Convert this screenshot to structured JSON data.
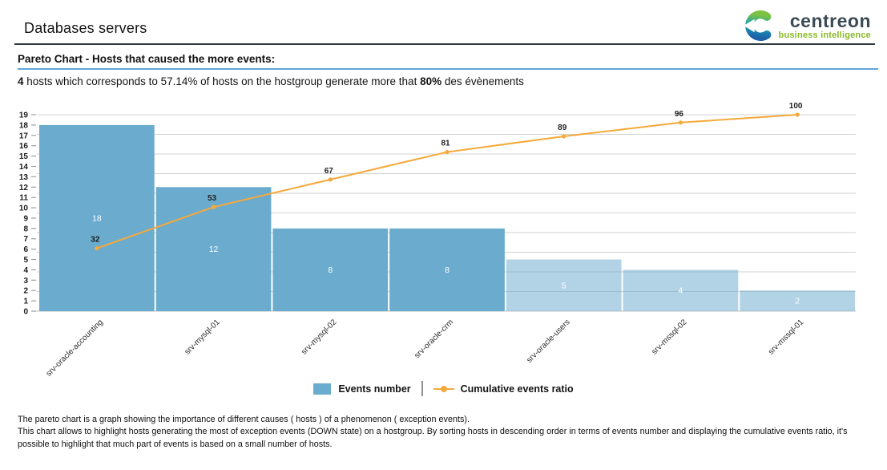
{
  "header": {
    "title": "Databases servers",
    "logo": {
      "name": "centreon",
      "tagline": "business intelligence"
    }
  },
  "section": {
    "heading": "Pareto Chart - Hosts that caused the more events:"
  },
  "summary": {
    "part1": "4",
    "part2": " hosts which corresponds to 57.14% of hosts on the hostgroup generate more that ",
    "part3": "80%",
    "part4": " des évènements"
  },
  "chart_data": {
    "type": "bar",
    "subtype": "pareto combo (bars + cumulative line)",
    "title": "",
    "categories": [
      "srv-oracle-accounting",
      "srv-mysql-01",
      "srv-mysql-02",
      "srv-oracle-crm",
      "srv-oracle-users",
      "srv-mssql-02",
      "srv-mssql-01"
    ],
    "series": [
      {
        "name": "Events number",
        "type": "bar",
        "values": [
          18,
          12,
          8,
          8,
          5,
          4,
          2
        ]
      },
      {
        "name": "Cumulative events ratio",
        "type": "line",
        "values_percent": [
          32,
          53,
          67,
          81,
          89,
          96,
          100
        ]
      }
    ],
    "ylim_left": [
      0,
      19
    ],
    "y_left_tick_step": 1,
    "right_axis_percent_range": [
      0,
      100
    ],
    "grid_percent_step": 10,
    "highlighted_bar_count": 4,
    "bar_color": "#6babcd",
    "faded_bar_opacity": 0.52,
    "line_color": "#f5a93a",
    "grid_color": "#d2d2d2",
    "axis_color": "#c4c4c4",
    "tick_color": "#9aa0a6",
    "legend": [
      "Events number",
      "Cumulative events ratio"
    ],
    "legend_position": "bottom-center"
  },
  "footer": {
    "lines": [
      "The pareto chart is a graph showing the importance of different causes ( hosts ) of a phenomenon ( exception events).",
      "This chart allows to highlight hosts generating the most of exception events (DOWN state) on a hostgroup. By sorting hosts in descending order in terms of events number and displaying the cumulative events ratio, it's",
      "possible to highlight that much part of events is based on a small number of hosts."
    ]
  }
}
